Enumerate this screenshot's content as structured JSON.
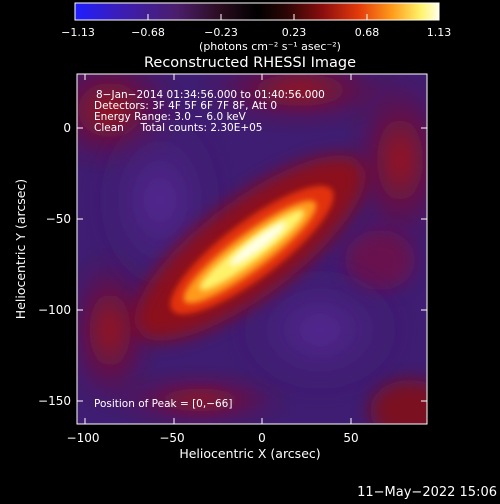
{
  "colorbar": {
    "ticks": [
      "−1.13",
      "−0.68",
      "−0.23",
      "0.23",
      "0.68",
      "1.13"
    ],
    "unit_label": "(photons cm⁻² s⁻¹ asec⁻²)",
    "colors": [
      "#1f1fff",
      "#3b1db8",
      "#4b1e6b",
      "#2a0c1e",
      "#000000",
      "#2a0505",
      "#8a0e0e",
      "#e43a0a",
      "#ff9a1a",
      "#fff36a",
      "#ffffe8"
    ]
  },
  "title": "Reconstructed RHESSI Image",
  "annotations": [
    "8−Jan−2014 01:34:56.000 to 01:40:56.000",
    "Detectors: 3F 4F 5F 6F 7F 8F, Att 0",
    "Energy Range: 3.0 − 6.0 keV",
    "Clean     Total counts: 2.30E+05"
  ],
  "peak_label": "Position of Peak = [0,−66]",
  "x_axis": {
    "label": "Heliocentric X (arcsec)",
    "ticks": [
      "−100",
      "−50",
      "0",
      "50"
    ]
  },
  "y_axis": {
    "label": "Heliocentric Y (arcsec)",
    "ticks": [
      "0",
      "−50",
      "−100",
      "−150"
    ]
  },
  "timestamp": "11−May−2022 15:06"
}
